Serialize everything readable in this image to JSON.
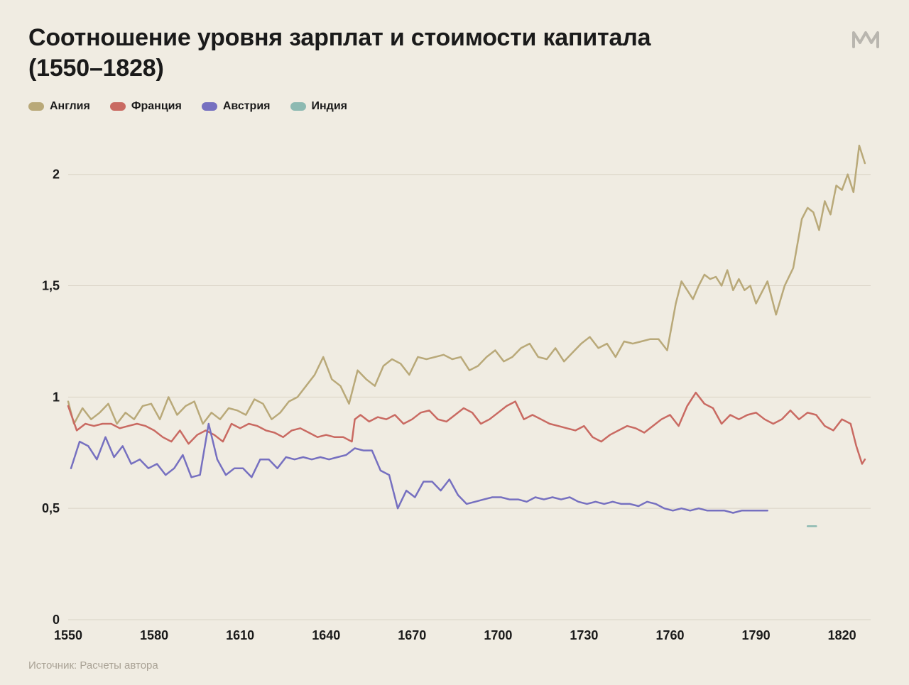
{
  "title_line1": "Соотношение уровня зарплат и стоимости капитала",
  "title_line2": "(1550–1828)",
  "source_label": "Источник: Расчеты автора",
  "logo_glyph": "m",
  "chart": {
    "type": "line",
    "background_color": "#f0ece2",
    "grid_color": "#d9d3c5",
    "axis_text_color": "#1a1a1a",
    "title_fontsize": 34,
    "label_fontsize": 18,
    "line_width": 2.5,
    "xlim": [
      1550,
      1830
    ],
    "ylim": [
      0,
      2.2
    ],
    "xticks": [
      1550,
      1580,
      1610,
      1640,
      1670,
      1700,
      1730,
      1760,
      1790,
      1820
    ],
    "xtick_labels": [
      "1550",
      "1580",
      "1610",
      "1640",
      "1670",
      "1700",
      "1730",
      "1760",
      "1790",
      "1820"
    ],
    "yticks": [
      0,
      0.5,
      1,
      1.5,
      2
    ],
    "ytick_labels": [
      "0",
      "0,5",
      "1",
      "1,5",
      "2"
    ],
    "legend_font_size": 16,
    "series": [
      {
        "name": "Англия",
        "color": "#b9a979",
        "data": [
          [
            1550,
            0.98
          ],
          [
            1552,
            0.88
          ],
          [
            1555,
            0.95
          ],
          [
            1558,
            0.9
          ],
          [
            1561,
            0.93
          ],
          [
            1564,
            0.97
          ],
          [
            1567,
            0.88
          ],
          [
            1570,
            0.93
          ],
          [
            1573,
            0.9
          ],
          [
            1576,
            0.96
          ],
          [
            1579,
            0.97
          ],
          [
            1582,
            0.9
          ],
          [
            1585,
            1.0
          ],
          [
            1588,
            0.92
          ],
          [
            1591,
            0.96
          ],
          [
            1594,
            0.98
          ],
          [
            1597,
            0.88
          ],
          [
            1600,
            0.93
          ],
          [
            1603,
            0.9
          ],
          [
            1606,
            0.95
          ],
          [
            1609,
            0.94
          ],
          [
            1612,
            0.92
          ],
          [
            1615,
            0.99
          ],
          [
            1618,
            0.97
          ],
          [
            1621,
            0.9
          ],
          [
            1624,
            0.93
          ],
          [
            1627,
            0.98
          ],
          [
            1630,
            1.0
          ],
          [
            1633,
            1.05
          ],
          [
            1636,
            1.1
          ],
          [
            1639,
            1.18
          ],
          [
            1642,
            1.08
          ],
          [
            1645,
            1.05
          ],
          [
            1648,
            0.97
          ],
          [
            1651,
            1.12
          ],
          [
            1654,
            1.08
          ],
          [
            1657,
            1.05
          ],
          [
            1660,
            1.14
          ],
          [
            1663,
            1.17
          ],
          [
            1666,
            1.15
          ],
          [
            1669,
            1.1
          ],
          [
            1672,
            1.18
          ],
          [
            1675,
            1.17
          ],
          [
            1678,
            1.18
          ],
          [
            1681,
            1.19
          ],
          [
            1684,
            1.17
          ],
          [
            1687,
            1.18
          ],
          [
            1690,
            1.12
          ],
          [
            1693,
            1.14
          ],
          [
            1696,
            1.18
          ],
          [
            1699,
            1.21
          ],
          [
            1702,
            1.16
          ],
          [
            1705,
            1.18
          ],
          [
            1708,
            1.22
          ],
          [
            1711,
            1.24
          ],
          [
            1714,
            1.18
          ],
          [
            1717,
            1.17
          ],
          [
            1720,
            1.22
          ],
          [
            1723,
            1.16
          ],
          [
            1726,
            1.2
          ],
          [
            1729,
            1.24
          ],
          [
            1732,
            1.27
          ],
          [
            1735,
            1.22
          ],
          [
            1738,
            1.24
          ],
          [
            1741,
            1.18
          ],
          [
            1744,
            1.25
          ],
          [
            1747,
            1.24
          ],
          [
            1750,
            1.25
          ],
          [
            1753,
            1.26
          ],
          [
            1756,
            1.26
          ],
          [
            1759,
            1.21
          ],
          [
            1762,
            1.42
          ],
          [
            1764,
            1.52
          ],
          [
            1766,
            1.48
          ],
          [
            1768,
            1.44
          ],
          [
            1770,
            1.5
          ],
          [
            1772,
            1.55
          ],
          [
            1774,
            1.53
          ],
          [
            1776,
            1.54
          ],
          [
            1778,
            1.5
          ],
          [
            1780,
            1.57
          ],
          [
            1782,
            1.48
          ],
          [
            1784,
            1.53
          ],
          [
            1786,
            1.48
          ],
          [
            1788,
            1.5
          ],
          [
            1790,
            1.42
          ],
          [
            1792,
            1.47
          ],
          [
            1794,
            1.52
          ],
          [
            1797,
            1.37
          ],
          [
            1800,
            1.5
          ],
          [
            1803,
            1.58
          ],
          [
            1806,
            1.8
          ],
          [
            1808,
            1.85
          ],
          [
            1810,
            1.83
          ],
          [
            1812,
            1.75
          ],
          [
            1814,
            1.88
          ],
          [
            1816,
            1.82
          ],
          [
            1818,
            1.95
          ],
          [
            1820,
            1.93
          ],
          [
            1822,
            2.0
          ],
          [
            1824,
            1.92
          ],
          [
            1826,
            2.13
          ],
          [
            1828,
            2.05
          ]
        ]
      },
      {
        "name": "Франция",
        "color": "#c96a62",
        "data": [
          [
            1550,
            0.96
          ],
          [
            1553,
            0.85
          ],
          [
            1556,
            0.88
          ],
          [
            1559,
            0.87
          ],
          [
            1562,
            0.88
          ],
          [
            1565,
            0.88
          ],
          [
            1568,
            0.86
          ],
          [
            1571,
            0.87
          ],
          [
            1574,
            0.88
          ],
          [
            1577,
            0.87
          ],
          [
            1580,
            0.85
          ],
          [
            1583,
            0.82
          ],
          [
            1586,
            0.8
          ],
          [
            1589,
            0.85
          ],
          [
            1592,
            0.79
          ],
          [
            1595,
            0.83
          ],
          [
            1598,
            0.85
          ],
          [
            1601,
            0.83
          ],
          [
            1604,
            0.8
          ],
          [
            1607,
            0.88
          ],
          [
            1610,
            0.86
          ],
          [
            1613,
            0.88
          ],
          [
            1616,
            0.87
          ],
          [
            1619,
            0.85
          ],
          [
            1622,
            0.84
          ],
          [
            1625,
            0.82
          ],
          [
            1628,
            0.85
          ],
          [
            1631,
            0.86
          ],
          [
            1634,
            0.84
          ],
          [
            1637,
            0.82
          ],
          [
            1640,
            0.83
          ],
          [
            1643,
            0.82
          ],
          [
            1646,
            0.82
          ],
          [
            1649,
            0.8
          ],
          [
            1650,
            0.9
          ],
          [
            1652,
            0.92
          ],
          [
            1655,
            0.89
          ],
          [
            1658,
            0.91
          ],
          [
            1661,
            0.9
          ],
          [
            1664,
            0.92
          ],
          [
            1667,
            0.88
          ],
          [
            1670,
            0.9
          ],
          [
            1673,
            0.93
          ],
          [
            1676,
            0.94
          ],
          [
            1679,
            0.9
          ],
          [
            1682,
            0.89
          ],
          [
            1685,
            0.92
          ],
          [
            1688,
            0.95
          ],
          [
            1691,
            0.93
          ],
          [
            1694,
            0.88
          ],
          [
            1697,
            0.9
          ],
          [
            1700,
            0.93
          ],
          [
            1703,
            0.96
          ],
          [
            1706,
            0.98
          ],
          [
            1709,
            0.9
          ],
          [
            1712,
            0.92
          ],
          [
            1715,
            0.9
          ],
          [
            1718,
            0.88
          ],
          [
            1721,
            0.87
          ],
          [
            1724,
            0.86
          ],
          [
            1727,
            0.85
          ],
          [
            1730,
            0.87
          ],
          [
            1733,
            0.82
          ],
          [
            1736,
            0.8
          ],
          [
            1739,
            0.83
          ],
          [
            1742,
            0.85
          ],
          [
            1745,
            0.87
          ],
          [
            1748,
            0.86
          ],
          [
            1751,
            0.84
          ],
          [
            1754,
            0.87
          ],
          [
            1757,
            0.9
          ],
          [
            1760,
            0.92
          ],
          [
            1763,
            0.87
          ],
          [
            1766,
            0.96
          ],
          [
            1769,
            1.02
          ],
          [
            1772,
            0.97
          ],
          [
            1775,
            0.95
          ],
          [
            1778,
            0.88
          ],
          [
            1781,
            0.92
          ],
          [
            1784,
            0.9
          ],
          [
            1787,
            0.92
          ],
          [
            1790,
            0.93
          ],
          [
            1793,
            0.9
          ],
          [
            1796,
            0.88
          ],
          [
            1799,
            0.9
          ],
          [
            1802,
            0.94
          ],
          [
            1805,
            0.9
          ],
          [
            1808,
            0.93
          ],
          [
            1811,
            0.92
          ],
          [
            1814,
            0.87
          ],
          [
            1817,
            0.85
          ],
          [
            1820,
            0.9
          ],
          [
            1823,
            0.88
          ],
          [
            1825,
            0.78
          ],
          [
            1827,
            0.7
          ],
          [
            1828,
            0.72
          ]
        ]
      },
      {
        "name": "Австрия",
        "color": "#7670c0",
        "data": [
          [
            1551,
            0.68
          ],
          [
            1554,
            0.8
          ],
          [
            1557,
            0.78
          ],
          [
            1560,
            0.72
          ],
          [
            1563,
            0.82
          ],
          [
            1566,
            0.73
          ],
          [
            1569,
            0.78
          ],
          [
            1572,
            0.7
          ],
          [
            1575,
            0.72
          ],
          [
            1578,
            0.68
          ],
          [
            1581,
            0.7
          ],
          [
            1584,
            0.65
          ],
          [
            1587,
            0.68
          ],
          [
            1590,
            0.74
          ],
          [
            1593,
            0.64
          ],
          [
            1596,
            0.65
          ],
          [
            1599,
            0.88
          ],
          [
            1602,
            0.72
          ],
          [
            1605,
            0.65
          ],
          [
            1608,
            0.68
          ],
          [
            1611,
            0.68
          ],
          [
            1614,
            0.64
          ],
          [
            1617,
            0.72
          ],
          [
            1620,
            0.72
          ],
          [
            1623,
            0.68
          ],
          [
            1626,
            0.73
          ],
          [
            1629,
            0.72
          ],
          [
            1632,
            0.73
          ],
          [
            1635,
            0.72
          ],
          [
            1638,
            0.73
          ],
          [
            1641,
            0.72
          ],
          [
            1644,
            0.73
          ],
          [
            1647,
            0.74
          ],
          [
            1650,
            0.77
          ],
          [
            1653,
            0.76
          ],
          [
            1656,
            0.76
          ],
          [
            1659,
            0.67
          ],
          [
            1662,
            0.65
          ],
          [
            1665,
            0.5
          ],
          [
            1668,
            0.58
          ],
          [
            1671,
            0.55
          ],
          [
            1674,
            0.62
          ],
          [
            1677,
            0.62
          ],
          [
            1680,
            0.58
          ],
          [
            1683,
            0.63
          ],
          [
            1686,
            0.56
          ],
          [
            1689,
            0.52
          ],
          [
            1692,
            0.53
          ],
          [
            1695,
            0.54
          ],
          [
            1698,
            0.55
          ],
          [
            1701,
            0.55
          ],
          [
            1704,
            0.54
          ],
          [
            1707,
            0.54
          ],
          [
            1710,
            0.53
          ],
          [
            1713,
            0.55
          ],
          [
            1716,
            0.54
          ],
          [
            1719,
            0.55
          ],
          [
            1722,
            0.54
          ],
          [
            1725,
            0.55
          ],
          [
            1728,
            0.53
          ],
          [
            1731,
            0.52
          ],
          [
            1734,
            0.53
          ],
          [
            1737,
            0.52
          ],
          [
            1740,
            0.53
          ],
          [
            1743,
            0.52
          ],
          [
            1746,
            0.52
          ],
          [
            1749,
            0.51
          ],
          [
            1752,
            0.53
          ],
          [
            1755,
            0.52
          ],
          [
            1758,
            0.5
          ],
          [
            1761,
            0.49
          ],
          [
            1764,
            0.5
          ],
          [
            1767,
            0.49
          ],
          [
            1770,
            0.5
          ],
          [
            1773,
            0.49
          ],
          [
            1776,
            0.49
          ],
          [
            1779,
            0.49
          ],
          [
            1782,
            0.48
          ],
          [
            1785,
            0.49
          ],
          [
            1788,
            0.49
          ],
          [
            1791,
            0.49
          ],
          [
            1794,
            0.49
          ]
        ]
      },
      {
        "name": "Индия",
        "color": "#8dbab2",
        "data": [
          [
            1808,
            0.42
          ],
          [
            1811,
            0.42
          ]
        ]
      }
    ]
  }
}
